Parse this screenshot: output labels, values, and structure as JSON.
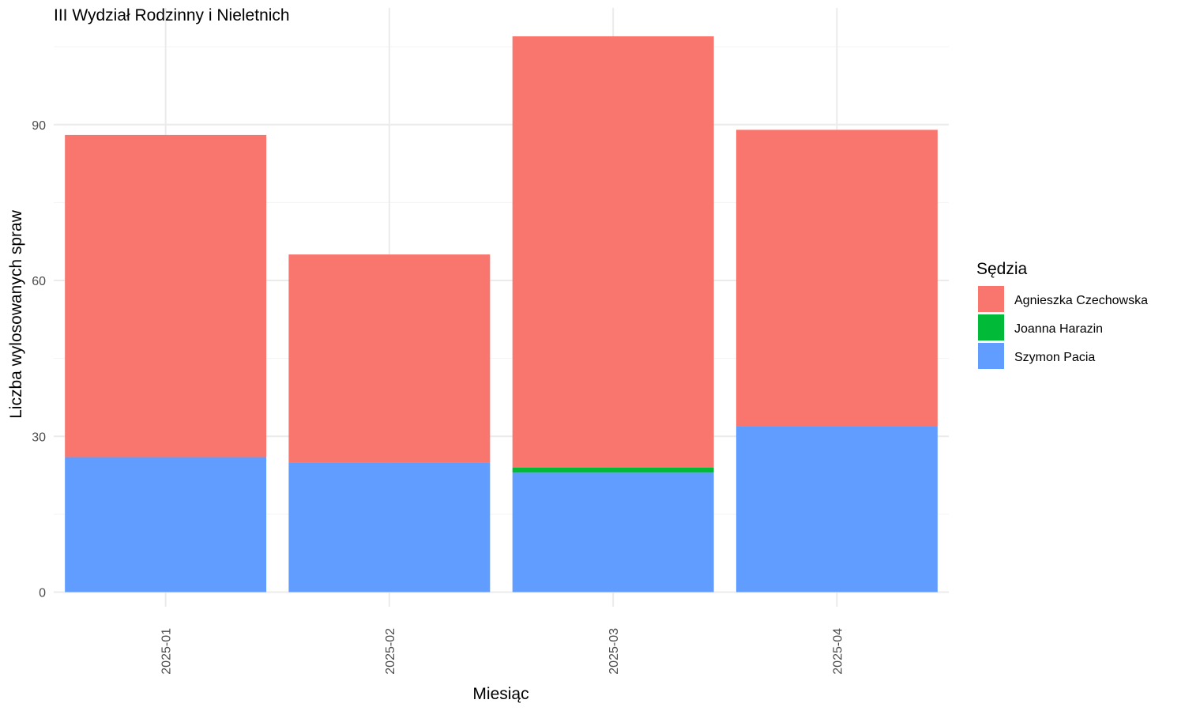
{
  "chart_data": {
    "type": "bar",
    "stacked": true,
    "title": "III Wydział Rodzinny i Nieletnich",
    "xlabel": "Miesiąc",
    "ylabel": "Liczba wylosowanych spraw",
    "categories": [
      "2025-01",
      "2025-02",
      "2025-03",
      "2025-04"
    ],
    "ylim": [
      0,
      110
    ],
    "yticks": [
      0,
      30,
      60,
      90
    ],
    "grid": true,
    "legend": {
      "title": "Sędzia",
      "position": "right"
    },
    "series": [
      {
        "name": "Szymon Pacia",
        "color": "#619CFF",
        "values": [
          26,
          25,
          23,
          32
        ]
      },
      {
        "name": "Joanna Harazin",
        "color": "#00BA38",
        "values": [
          0,
          0,
          1,
          0
        ]
      },
      {
        "name": "Agnieszka Czechowska",
        "color": "#F8766D",
        "values": [
          62,
          40,
          83,
          57
        ]
      }
    ],
    "legend_order": [
      "Agnieszka Czechowska",
      "Joanna Harazin",
      "Szymon Pacia"
    ]
  }
}
